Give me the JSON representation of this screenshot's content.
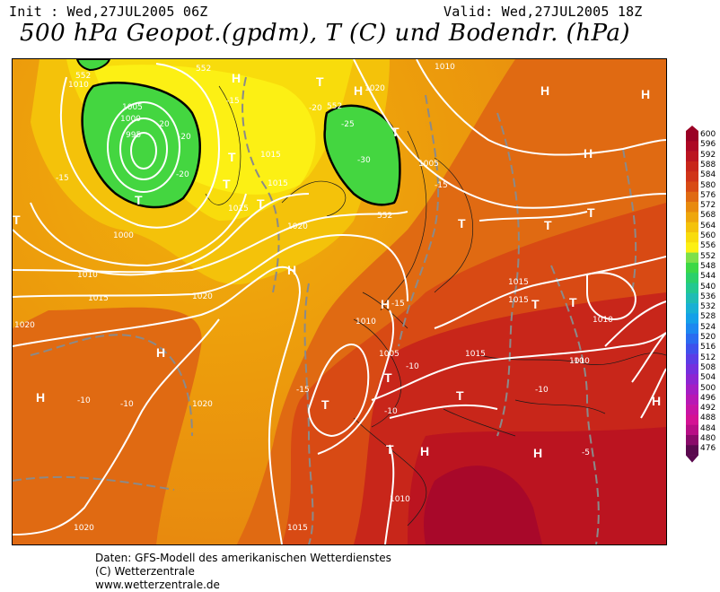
{
  "header": {
    "init": "Init : Wed,27JUL2005 06Z",
    "valid": "Valid: Wed,27JUL2005 18Z",
    "title": "500 hPa Geopot.(gpdm), T (C) und Bodendr. (hPa)"
  },
  "legend": {
    "levels": [
      "600",
      "596",
      "592",
      "588",
      "584",
      "580",
      "576",
      "572",
      "568",
      "564",
      "560",
      "556",
      "552",
      "548",
      "544",
      "540",
      "536",
      "532",
      "528",
      "524",
      "520",
      "516",
      "512",
      "508",
      "504",
      "500",
      "496",
      "492",
      "488",
      "484",
      "480",
      "476"
    ],
    "colors": [
      "#9a0024",
      "#ad0724",
      "#bb1420",
      "#c8261a",
      "#d03418",
      "#d84a14",
      "#e06a12",
      "#e88a0e",
      "#eea60c",
      "#f4c20a",
      "#f8dc0c",
      "#fcf014",
      "#7ee04a",
      "#3cd846",
      "#2ad06a",
      "#22c890",
      "#1ebcb4",
      "#18b0d4",
      "#14a0e8",
      "#1c88f0",
      "#2a6cf0",
      "#3e52ec",
      "#5a3ee6",
      "#7430de",
      "#8c26d2",
      "#a41ec4",
      "#b818b4",
      "#c814a4",
      "#d41294",
      "#b80e86",
      "#8a0a6a",
      "#5a084e"
    ]
  },
  "map": {
    "labels": [
      {
        "t": "1010",
        "k": "l"
      },
      {
        "t": "1005",
        "k": "l"
      },
      {
        "t": "1000",
        "k": "l"
      },
      {
        "t": "995",
        "k": "l"
      },
      {
        "t": "1000",
        "k": "l"
      },
      {
        "t": "-20",
        "k": "l"
      },
      {
        "t": "-20",
        "k": "l"
      },
      {
        "t": "-20",
        "k": "l"
      },
      {
        "t": "-15",
        "k": "l"
      },
      {
        "t": "-15",
        "k": "l"
      },
      {
        "t": "-20",
        "k": "l"
      },
      {
        "t": "-25",
        "k": "l"
      },
      {
        "t": "-30",
        "k": "l"
      },
      {
        "t": "1020",
        "k": "l"
      },
      {
        "t": "1015",
        "k": "l"
      },
      {
        "t": "1015",
        "k": "l"
      },
      {
        "t": "1015",
        "k": "l"
      },
      {
        "t": "1010",
        "k": "l"
      },
      {
        "t": "1005",
        "k": "l"
      },
      {
        "t": "1020",
        "k": "l"
      },
      {
        "t": "1010",
        "k": "l"
      },
      {
        "t": "1015",
        "k": "l"
      },
      {
        "t": "1020",
        "k": "l"
      },
      {
        "t": "1005",
        "k": "l"
      },
      {
        "t": "1010",
        "k": "l"
      },
      {
        "t": "1015",
        "k": "l"
      },
      {
        "t": "1015",
        "k": "l"
      },
      {
        "t": "1015",
        "k": "l"
      },
      {
        "t": "1010",
        "k": "l"
      },
      {
        "t": "1010",
        "k": "l"
      },
      {
        "t": "1020",
        "k": "l"
      },
      {
        "t": "1020",
        "k": "l"
      },
      {
        "t": "1020",
        "k": "l"
      },
      {
        "t": "1015",
        "k": "l"
      },
      {
        "t": "1010",
        "k": "l"
      },
      {
        "t": "-10",
        "k": "l"
      },
      {
        "t": "-10",
        "k": "l"
      },
      {
        "t": "-10",
        "k": "l"
      },
      {
        "t": "-10",
        "k": "l"
      },
      {
        "t": "-10",
        "k": "l"
      },
      {
        "t": "-10",
        "k": "l"
      },
      {
        "t": "-5",
        "k": "l"
      },
      {
        "t": "-15",
        "k": "l"
      },
      {
        "t": "-15",
        "k": "l"
      },
      {
        "t": "-15",
        "k": "l"
      },
      {
        "t": "552",
        "k": "l"
      },
      {
        "t": "552",
        "k": "l"
      },
      {
        "t": "552",
        "k": "l"
      },
      {
        "t": "552",
        "k": "l"
      },
      {
        "t": "H",
        "k": "s"
      },
      {
        "t": "H",
        "k": "s"
      },
      {
        "t": "H",
        "k": "s"
      },
      {
        "t": "H",
        "k": "s"
      },
      {
        "t": "H",
        "k": "s"
      },
      {
        "t": "H",
        "k": "s"
      },
      {
        "t": "H",
        "k": "s"
      },
      {
        "t": "H",
        "k": "s"
      },
      {
        "t": "H",
        "k": "s"
      },
      {
        "t": "H",
        "k": "s"
      },
      {
        "t": "H",
        "k": "s"
      },
      {
        "t": "H",
        "k": "s"
      },
      {
        "t": "T",
        "k": "s"
      },
      {
        "t": "T",
        "k": "s"
      },
      {
        "t": "T",
        "k": "s"
      },
      {
        "t": "T",
        "k": "s"
      },
      {
        "t": "T",
        "k": "s"
      },
      {
        "t": "T",
        "k": "s"
      },
      {
        "t": "T",
        "k": "s"
      },
      {
        "t": "T",
        "k": "s"
      },
      {
        "t": "T",
        "k": "s"
      },
      {
        "t": "T",
        "k": "s"
      },
      {
        "t": "T",
        "k": "s"
      },
      {
        "t": "T",
        "k": "s"
      },
      {
        "t": "T",
        "k": "s"
      },
      {
        "t": "T",
        "k": "s"
      },
      {
        "t": "T",
        "k": "s"
      },
      {
        "t": "T",
        "k": "s"
      }
    ]
  },
  "footer": {
    "line1": "Daten: GFS-Modell des amerikanischen Wetterdienstes",
    "line2": "(C) Wetterzentrale",
    "line3": "www.wetterzentrale.de"
  }
}
